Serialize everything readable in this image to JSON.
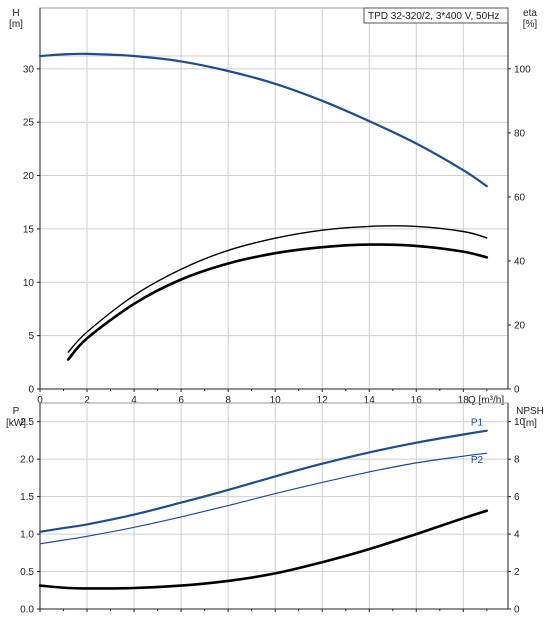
{
  "chart_data": [
    {
      "type": "line",
      "title": "TPD 32-320/2, 3*400 V, 50Hz",
      "xlabel": "Q [m³/h]",
      "ylabel_top": "H",
      "ylabel_unit": "[m]",
      "y2label_top": "eta",
      "y2label_unit": "[%]",
      "xlim": [
        0,
        19.9
      ],
      "ylim": [
        0,
        35.7
      ],
      "y2lim": [
        0,
        119
      ],
      "xticks": [
        0,
        2,
        4,
        6,
        8,
        10,
        12,
        14,
        16,
        18
      ],
      "yticks": [
        0,
        5,
        10,
        15,
        20,
        25,
        30
      ],
      "y2ticks": [
        0,
        20,
        40,
        60,
        80,
        100
      ],
      "grid": true,
      "series": [
        {
          "axis": "left",
          "color": "#1f4e8c",
          "width": 2.2,
          "x": [
            0,
            1,
            2,
            4,
            6,
            8,
            10,
            12,
            14,
            16,
            18,
            19
          ],
          "y": [
            31.2,
            31.35,
            31.4,
            31.2,
            30.7,
            29.8,
            28.6,
            27.0,
            25.1,
            23.0,
            20.5,
            19.0
          ]
        },
        {
          "axis": "right",
          "color": "#000000",
          "width": 1.4,
          "x": [
            1.2,
            2,
            4,
            6,
            8,
            10,
            12,
            14,
            16,
            18,
            19
          ],
          "y": [
            11.5,
            17.8,
            29.2,
            37.4,
            43.3,
            47.1,
            49.6,
            50.8,
            50.8,
            49.2,
            47.2
          ]
        },
        {
          "axis": "right",
          "color": "#000000",
          "width": 2.6,
          "x": [
            1.2,
            2,
            4,
            6,
            8,
            10,
            12,
            14,
            16,
            18,
            19
          ],
          "y": [
            9.2,
            15.8,
            26.6,
            34.2,
            39.2,
            42.4,
            44.3,
            45.1,
            44.7,
            42.9,
            41.1
          ]
        }
      ]
    },
    {
      "type": "line",
      "xlabel": "",
      "ylabel_top": "P",
      "ylabel_unit": "[kW]",
      "y2label_top": "NPSH",
      "y2label_unit": "[m]",
      "xlim": [
        0,
        19.9
      ],
      "ylim": [
        0,
        2.75
      ],
      "y2lim": [
        0,
        11
      ],
      "xticks": [
        0,
        2,
        4,
        6,
        8,
        10,
        12,
        14,
        16,
        18
      ],
      "yticks": [
        0.0,
        0.5,
        1.0,
        1.5,
        2.0,
        2.5
      ],
      "ytick_labels": [
        "0.0",
        "0.5",
        "1.0",
        "1.5",
        "2.0",
        "2.5"
      ],
      "y2ticks": [
        0,
        2,
        4,
        6,
        8,
        10
      ],
      "grid": true,
      "series": [
        {
          "name": "P1",
          "axis": "left",
          "color": "#1f4e8c",
          "width": 2.2,
          "x": [
            0,
            1,
            2,
            4,
            6,
            8,
            10,
            12,
            14,
            16,
            18,
            19
          ],
          "y": [
            1.03,
            1.08,
            1.13,
            1.26,
            1.42,
            1.59,
            1.77,
            1.94,
            2.09,
            2.22,
            2.33,
            2.38
          ]
        },
        {
          "name": "P2",
          "axis": "left",
          "color": "#1f4e8c",
          "width": 1.2,
          "x": [
            0,
            1,
            2,
            4,
            6,
            8,
            10,
            12,
            14,
            16,
            18,
            19
          ],
          "y": [
            0.87,
            0.92,
            0.97,
            1.09,
            1.23,
            1.38,
            1.54,
            1.69,
            1.83,
            1.95,
            2.04,
            2.08
          ]
        },
        {
          "axis": "right",
          "color": "#000000",
          "width": 2.6,
          "x": [
            0,
            1.2,
            2,
            4,
            6,
            8,
            10,
            12,
            14,
            16,
            18,
            19
          ],
          "y": [
            1.25,
            1.12,
            1.1,
            1.12,
            1.25,
            1.5,
            1.9,
            2.5,
            3.2,
            4.0,
            4.85,
            5.25
          ]
        }
      ]
    }
  ]
}
